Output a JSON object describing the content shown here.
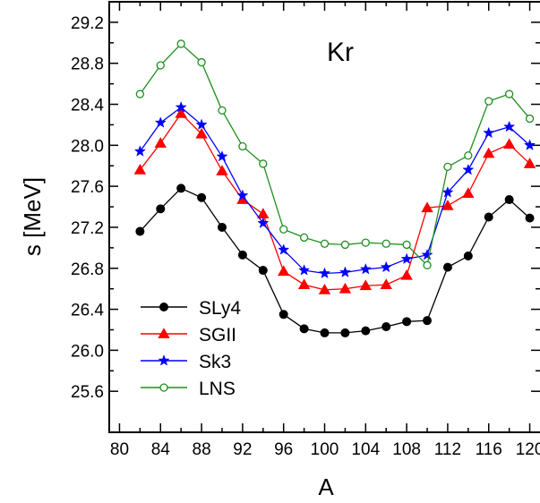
{
  "chart_data": {
    "type": "line",
    "title": "",
    "annotation": "Kr",
    "xlabel": "A",
    "ylabel": "s [MeV]",
    "xlim": [
      79,
      121
    ],
    "ylim": [
      25.2,
      29.4
    ],
    "xticks": [
      80,
      84,
      88,
      92,
      96,
      100,
      104,
      108,
      112,
      116,
      120
    ],
    "xtick_labels": [
      "80",
      "84",
      "88",
      "92",
      "96",
      "100",
      "104",
      "108",
      "112",
      "116",
      "120"
    ],
    "yticks": [
      25.6,
      26.0,
      26.4,
      26.8,
      27.2,
      27.6,
      28.0,
      28.4,
      28.8,
      29.2
    ],
    "ytick_labels": [
      "25.6",
      "26.0",
      "26.4",
      "26.8",
      "27.2",
      "27.6",
      "28.0",
      "28.4",
      "28.8",
      "29.2"
    ],
    "legend_position": "bottom-left",
    "x": [
      82,
      84,
      86,
      88,
      90,
      92,
      94,
      96,
      98,
      100,
      102,
      104,
      106,
      108,
      110,
      112,
      114,
      116,
      118,
      120
    ],
    "series": [
      {
        "name": "SLy4",
        "color": "#000000",
        "marker": "filled-circle",
        "values": [
          27.16,
          27.38,
          27.58,
          27.49,
          27.2,
          26.93,
          26.78,
          26.35,
          26.21,
          26.17,
          26.17,
          26.19,
          26.23,
          26.28,
          26.29,
          26.81,
          26.92,
          27.3,
          27.47,
          27.29
        ]
      },
      {
        "name": "SGII",
        "color": "#ff0000",
        "marker": "filled-triangle",
        "values": [
          27.76,
          28.02,
          28.31,
          28.11,
          27.75,
          27.47,
          27.33,
          26.77,
          26.64,
          26.59,
          26.6,
          26.63,
          26.64,
          26.73,
          27.39,
          27.41,
          27.53,
          27.92,
          28.01,
          27.82
        ]
      },
      {
        "name": "Sk3",
        "color": "#0000ff",
        "marker": "filled-star",
        "values": [
          27.94,
          28.22,
          28.37,
          28.2,
          27.89,
          27.51,
          27.24,
          26.98,
          26.78,
          26.75,
          26.76,
          26.79,
          26.81,
          26.89,
          26.93,
          27.54,
          27.76,
          28.12,
          28.18,
          28.0
        ]
      },
      {
        "name": "LNS",
        "color": "#1f8f1f",
        "marker": "open-circle",
        "values": [
          28.5,
          28.78,
          28.99,
          28.81,
          28.34,
          27.99,
          27.82,
          27.18,
          27.1,
          27.04,
          27.03,
          27.05,
          27.04,
          27.03,
          26.83,
          27.79,
          27.9,
          28.43,
          28.5,
          28.26
        ]
      }
    ]
  }
}
